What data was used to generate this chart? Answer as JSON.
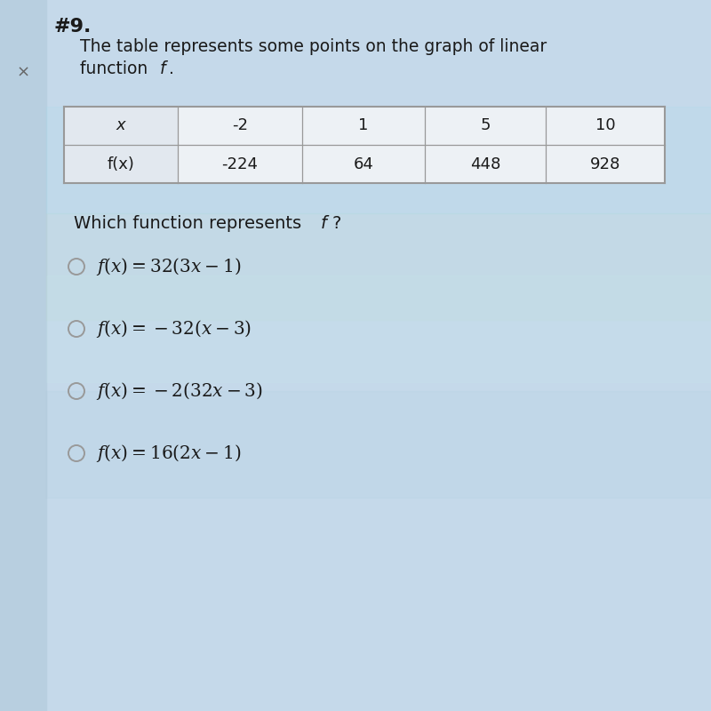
{
  "number_label": "#9.",
  "x_mark": "×",
  "desc_line1": "The table represents some points on the graph of linear",
  "desc_line2_normal": "function ",
  "desc_line2_italic": "f",
  "desc_line2_end": ".",
  "table_headers": [
    "x",
    "-2",
    "1",
    "5",
    "10"
  ],
  "table_row2": [
    "f(x)",
    "-224",
    "64",
    "448",
    "928"
  ],
  "question_normal": "Which function represents ",
  "question_italic": "f",
  "question_end": "?",
  "math_options": [
    "$f(x) = 32(3x - 1)$",
    "$f(x) = -32(x - 3)$",
    "$f(x) = -2(32x - 3)$",
    "$f(x) = 16(2x - 1)$"
  ],
  "bg_color": "#c5d9ea",
  "left_panel_color": "#b8cfe0",
  "table_bg": "#e8eef4",
  "table_border": "#999999",
  "text_color": "#1a1a1a",
  "circle_color": "#999999"
}
